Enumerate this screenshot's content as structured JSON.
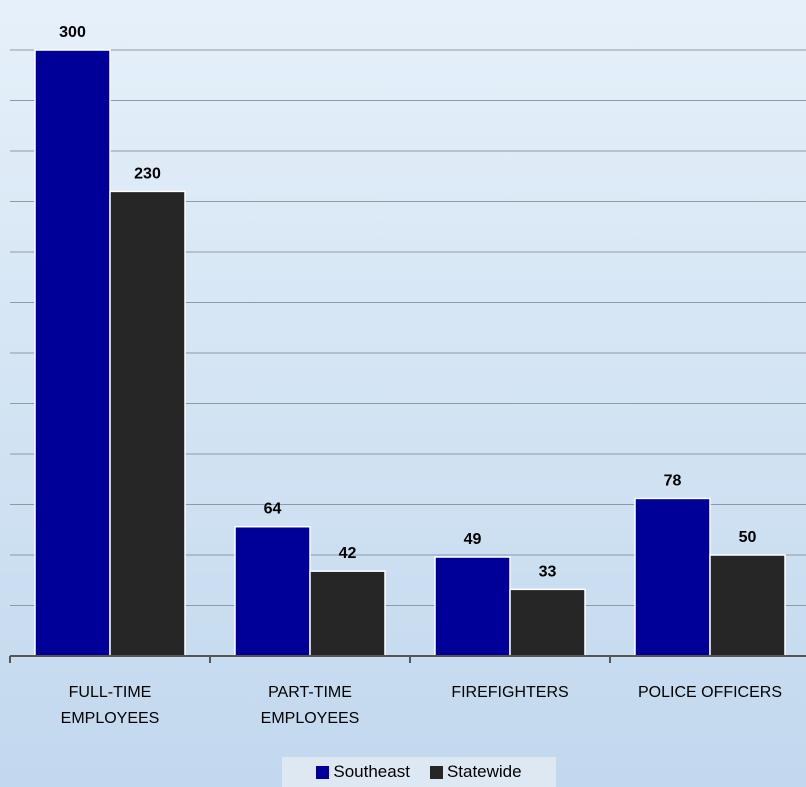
{
  "chart_data": {
    "type": "bar",
    "categories": [
      [
        "FULL-TIME",
        "EMPLOYEES"
      ],
      [
        "PART-TIME",
        "EMPLOYEES"
      ],
      [
        "FIREFIGHTERS"
      ],
      [
        "POLICE OFFICERS"
      ]
    ],
    "series": [
      {
        "name": "Southeast",
        "values": [
          300,
          64,
          49,
          78
        ],
        "color": "#000099"
      },
      {
        "name": "Statewide",
        "values": [
          230,
          42,
          33,
          50
        ],
        "color": "#262626"
      }
    ],
    "ylim": [
      0,
      300
    ],
    "grid": true,
    "legend_position": "bottom",
    "title": "",
    "xlabel": "",
    "ylabel": ""
  }
}
